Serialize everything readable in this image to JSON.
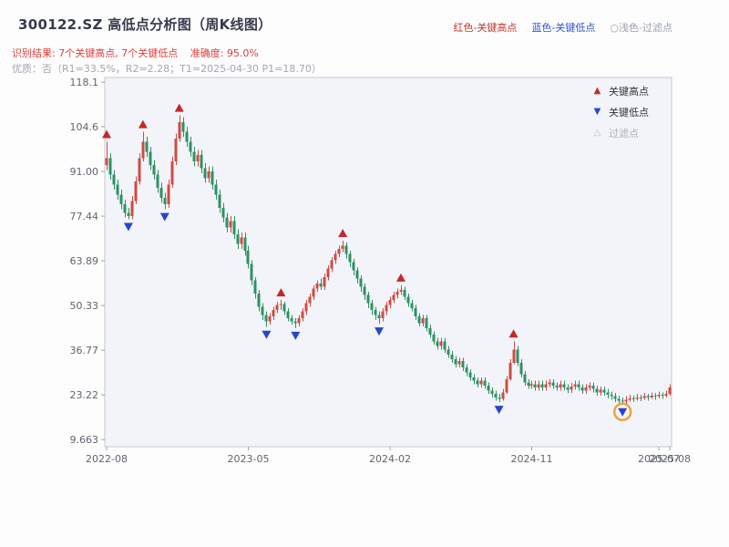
{
  "header": {
    "title": "300122.SZ 高低点分析图（周K线图）",
    "legend_high": "红色-关键高点",
    "legend_low": "蓝色-关键低点",
    "legend_filtered": "○浅色-过滤点",
    "result_line": "识别结果: 7个关键高点, 7个关键低点",
    "accuracy_line": "准确度: 95.0%",
    "quality_line": "优质：否（R1=33.5%，R2=2.28；T1=2025-04-30 P1=18.70）"
  },
  "plot_legend": {
    "high": "关键高点",
    "low": "关键低点",
    "filtered": "过滤点"
  },
  "chart_data": {
    "type": "candlestick",
    "symbol": "300122.SZ",
    "period": "weekly",
    "start_date": "2022-08-05",
    "key_high_count": 7,
    "key_low_count": 7,
    "accuracy_pct": 95.0,
    "y_ticks": [
      "118.1",
      "104.6",
      "91.00",
      "77.44",
      "63.89",
      "50.33",
      "36.77",
      "23.22",
      "9.663"
    ],
    "y_axis_range": [
      7.5,
      119.5
    ],
    "x_ticks": [
      {
        "week": 0,
        "label": "2022-08"
      },
      {
        "week": 39,
        "label": "2023-05"
      },
      {
        "week": 78,
        "label": "2024-02"
      },
      {
        "week": 117,
        "label": "2024-11"
      },
      {
        "week": 152,
        "label": "2025-07"
      },
      {
        "week": 155,
        "label": "2025-08"
      }
    ],
    "colors": {
      "up": "#cf4b42",
      "down": "#2f9162",
      "marker_high": "#c62828",
      "marker_low": "#2944cc",
      "filtered_ring": "#f0a13a",
      "plot_bg": "#f2f4f9",
      "border": "#c3c8d4",
      "tick": "#9aa0ac",
      "tick_text": "#5f6470"
    },
    "candles": [
      [
        93,
        100,
        91.5,
        95
      ],
      [
        95,
        96.5,
        88.5,
        90
      ],
      [
        90,
        91.5,
        85.5,
        87
      ],
      [
        87,
        88.5,
        82.5,
        84
      ],
      [
        84,
        85.5,
        79.5,
        81
      ],
      [
        81,
        82.5,
        77,
        78.5
      ],
      [
        78.5,
        80,
        76.5,
        77.5
      ],
      [
        77.5,
        83.5,
        76.5,
        82
      ],
      [
        82,
        89.5,
        81,
        88
      ],
      [
        88,
        96.5,
        87,
        95
      ],
      [
        95,
        103,
        94,
        100
      ],
      [
        100,
        101.5,
        95.5,
        97
      ],
      [
        97,
        98.5,
        91.5,
        93
      ],
      [
        93,
        94.5,
        88.5,
        90
      ],
      [
        90,
        91.5,
        84.5,
        86
      ],
      [
        86,
        87.5,
        81.5,
        83
      ],
      [
        83,
        84.5,
        79.5,
        81
      ],
      [
        81,
        88.5,
        80,
        87
      ],
      [
        87,
        95.5,
        86,
        94
      ],
      [
        94,
        102.5,
        93,
        101
      ],
      [
        101,
        108,
        100,
        106
      ],
      [
        106,
        107.5,
        101.5,
        103
      ],
      [
        103,
        104.5,
        98.5,
        100
      ],
      [
        100,
        101.5,
        95.5,
        97
      ],
      [
        97,
        98.5,
        92.5,
        94
      ],
      [
        94,
        97.5,
        92.5,
        96
      ],
      [
        96,
        97.5,
        90.5,
        92
      ],
      [
        92,
        93.5,
        87.5,
        89
      ],
      [
        89,
        92.5,
        87.5,
        91
      ],
      [
        91,
        92.5,
        85.5,
        87
      ],
      [
        87,
        88.5,
        82.5,
        84
      ],
      [
        84,
        85.5,
        78.5,
        80
      ],
      [
        80,
        81.5,
        75.5,
        77
      ],
      [
        77,
        78.5,
        72.5,
        74
      ],
      [
        74,
        77.5,
        72.5,
        76
      ],
      [
        76,
        77.5,
        70.5,
        72
      ],
      [
        72,
        73.5,
        67.5,
        69
      ],
      [
        69,
        72.5,
        67.5,
        71
      ],
      [
        71,
        72.5,
        65.5,
        67
      ],
      [
        67,
        68.5,
        61.5,
        63
      ],
      [
        63,
        64,
        56.5,
        58
      ],
      [
        58,
        59,
        52.5,
        54
      ],
      [
        54,
        55,
        48.5,
        50
      ],
      [
        50,
        51,
        46,
        47.5
      ],
      [
        47.5,
        48.5,
        43.8,
        45.5
      ],
      [
        45.5,
        48,
        44.5,
        47
      ],
      [
        47,
        50,
        46,
        49
      ],
      [
        49,
        51.5,
        48,
        50.5
      ],
      [
        50.5,
        52,
        49,
        50.8
      ],
      [
        50.8,
        51.5,
        47.5,
        48.5
      ],
      [
        48.5,
        49.5,
        45.5,
        46.5
      ],
      [
        46.5,
        47.5,
        44.5,
        45.5
      ],
      [
        45.5,
        46.5,
        43.5,
        45
      ],
      [
        45,
        47.5,
        44,
        46.5
      ],
      [
        46.5,
        49.5,
        45.5,
        48.5
      ],
      [
        48.5,
        52,
        47.5,
        51
      ],
      [
        51,
        54,
        50,
        53
      ],
      [
        53,
        56.5,
        52,
        55.5
      ],
      [
        55.5,
        58,
        54.5,
        57
      ],
      [
        57,
        58.5,
        55,
        56
      ],
      [
        56,
        60,
        55,
        59
      ],
      [
        59,
        62.5,
        58,
        61.5
      ],
      [
        61.5,
        65,
        60.5,
        64
      ],
      [
        64,
        67,
        63,
        66
      ],
      [
        66,
        68.5,
        65,
        67.5
      ],
      [
        67.5,
        70,
        66.5,
        68.5
      ],
      [
        68.5,
        69.5,
        64.5,
        66
      ],
      [
        66,
        67,
        62,
        63.5
      ],
      [
        63.5,
        64.5,
        59.5,
        61
      ],
      [
        61,
        62,
        57,
        58.5
      ],
      [
        58.5,
        59.5,
        54.5,
        56
      ],
      [
        56,
        57,
        52,
        53.5
      ],
      [
        53.5,
        54.5,
        49.5,
        51
      ],
      [
        51,
        52,
        47.5,
        49
      ],
      [
        49,
        50,
        46,
        47.5
      ],
      [
        47.5,
        48.5,
        44.8,
        46.5
      ],
      [
        46.5,
        49.5,
        45.5,
        48.5
      ],
      [
        48.5,
        51.5,
        47.5,
        50.5
      ],
      [
        50.5,
        53,
        49.5,
        52
      ],
      [
        52,
        54.5,
        51,
        53.5
      ],
      [
        53.5,
        55.5,
        52.5,
        54.5
      ],
      [
        54.5,
        56.5,
        53.5,
        55
      ],
      [
        55,
        56,
        52,
        53
      ],
      [
        53,
        54,
        50,
        51
      ],
      [
        51,
        52,
        48.5,
        49.5
      ],
      [
        49.5,
        50.5,
        46,
        47
      ],
      [
        47,
        48,
        44,
        45
      ],
      [
        45,
        47.5,
        44,
        46.5
      ],
      [
        46.5,
        47.5,
        42.5,
        43.5
      ],
      [
        43.5,
        44.5,
        40.5,
        41.5
      ],
      [
        41.5,
        42.5,
        38.5,
        39.5
      ],
      [
        39.5,
        40.5,
        37,
        38
      ],
      [
        38,
        40.5,
        37,
        39.5
      ],
      [
        39.5,
        40.5,
        36,
        37
      ],
      [
        37,
        38,
        34.5,
        35.5
      ],
      [
        35.5,
        36.5,
        33,
        34
      ],
      [
        34,
        35,
        31.5,
        32.5
      ],
      [
        32.5,
        34.5,
        31.5,
        33.5
      ],
      [
        33.5,
        34.5,
        30.5,
        31.5
      ],
      [
        31.5,
        32.5,
        29,
        30
      ],
      [
        30,
        31,
        27.5,
        28.5
      ],
      [
        28.5,
        29.5,
        26.5,
        27.5
      ],
      [
        27.5,
        28.5,
        25.5,
        26.5
      ],
      [
        26.5,
        28.5,
        25.5,
        27.5
      ],
      [
        27.5,
        28.5,
        25,
        26
      ],
      [
        26,
        27,
        23.5,
        24.5
      ],
      [
        24.5,
        25.5,
        22.5,
        23.5
      ],
      [
        23.5,
        24.5,
        21.5,
        22.5
      ],
      [
        22.5,
        23.5,
        21,
        22
      ],
      [
        22,
        25,
        21.5,
        24
      ],
      [
        24,
        29,
        23.5,
        28
      ],
      [
        28,
        34,
        27.5,
        33
      ],
      [
        33,
        39.5,
        32.5,
        37
      ],
      [
        37,
        38,
        32,
        33
      ],
      [
        33,
        34,
        28.5,
        29.5
      ],
      [
        29.5,
        30.5,
        26,
        27
      ],
      [
        27,
        28,
        25,
        26
      ],
      [
        26,
        27.5,
        25,
        26.5
      ],
      [
        26.5,
        27.5,
        24.5,
        25.5
      ],
      [
        25.5,
        27.5,
        24.5,
        26.5
      ],
      [
        26.5,
        27.5,
        24.5,
        25.5
      ],
      [
        25.5,
        27.5,
        24.5,
        26.5
      ],
      [
        26.5,
        28,
        25.5,
        27
      ],
      [
        27,
        28,
        25,
        26
      ],
      [
        26,
        27,
        24.5,
        25.5
      ],
      [
        25.5,
        27.5,
        24.5,
        26.5
      ],
      [
        26.5,
        27.5,
        24.5,
        25.5
      ],
      [
        25.5,
        26.5,
        23.8,
        24.8
      ],
      [
        24.8,
        26.8,
        23.8,
        25.8
      ],
      [
        25.8,
        27.5,
        24.8,
        26.5
      ],
      [
        26.5,
        27.5,
        24.5,
        25.5
      ],
      [
        25.5,
        26.5,
        23.5,
        24.5
      ],
      [
        24.5,
        26.5,
        23.5,
        25.5
      ],
      [
        25.5,
        27,
        24.5,
        26
      ],
      [
        26,
        27,
        24,
        25
      ],
      [
        25,
        26,
        23,
        24
      ],
      [
        24,
        25.8,
        23,
        24.8
      ],
      [
        24.8,
        25.8,
        23,
        24
      ],
      [
        24,
        25,
        22.2,
        23.2
      ],
      [
        23.2,
        24.2,
        21.8,
        22.8
      ],
      [
        22.8,
        23.8,
        21,
        22
      ],
      [
        22,
        23,
        20.5,
        21.5
      ],
      [
        21.5,
        22.5,
        20.3,
        21.2
      ],
      [
        21.2,
        22.8,
        20.2,
        21.8
      ],
      [
        21.8,
        23.2,
        21.2,
        22.2
      ],
      [
        22.2,
        23,
        21,
        22
      ],
      [
        22,
        23.5,
        21.5,
        22.5
      ],
      [
        22.5,
        23.3,
        21.3,
        22.3
      ],
      [
        22.3,
        23.8,
        21.8,
        22.8
      ],
      [
        22.8,
        23.5,
        21.5,
        22.5
      ],
      [
        22.5,
        24,
        22,
        23
      ],
      [
        23,
        23.8,
        21.8,
        22.8
      ],
      [
        22.8,
        24.2,
        22.2,
        23.2
      ],
      [
        23.2,
        24,
        22,
        23
      ],
      [
        23,
        24.5,
        22.5,
        23.5
      ],
      [
        23.5,
        26.5,
        23,
        25.5
      ]
    ],
    "key_highs": [
      {
        "week": 0,
        "price": 100
      },
      {
        "week": 10,
        "price": 103
      },
      {
        "week": 20,
        "price": 108
      },
      {
        "week": 48,
        "price": 52
      },
      {
        "week": 65,
        "price": 70
      },
      {
        "week": 81,
        "price": 56.5
      },
      {
        "week": 112,
        "price": 39.5
      }
    ],
    "key_lows": [
      {
        "week": 6,
        "price": 76.5
      },
      {
        "week": 16,
        "price": 79.5
      },
      {
        "week": 44,
        "price": 43.8
      },
      {
        "week": 52,
        "price": 43.5
      },
      {
        "week": 75,
        "price": 44.8
      },
      {
        "week": 108,
        "price": 21
      },
      {
        "week": 142,
        "price": 20.3
      }
    ],
    "filtered_points": [
      {
        "week": 142,
        "price": 20.3
      }
    ]
  }
}
